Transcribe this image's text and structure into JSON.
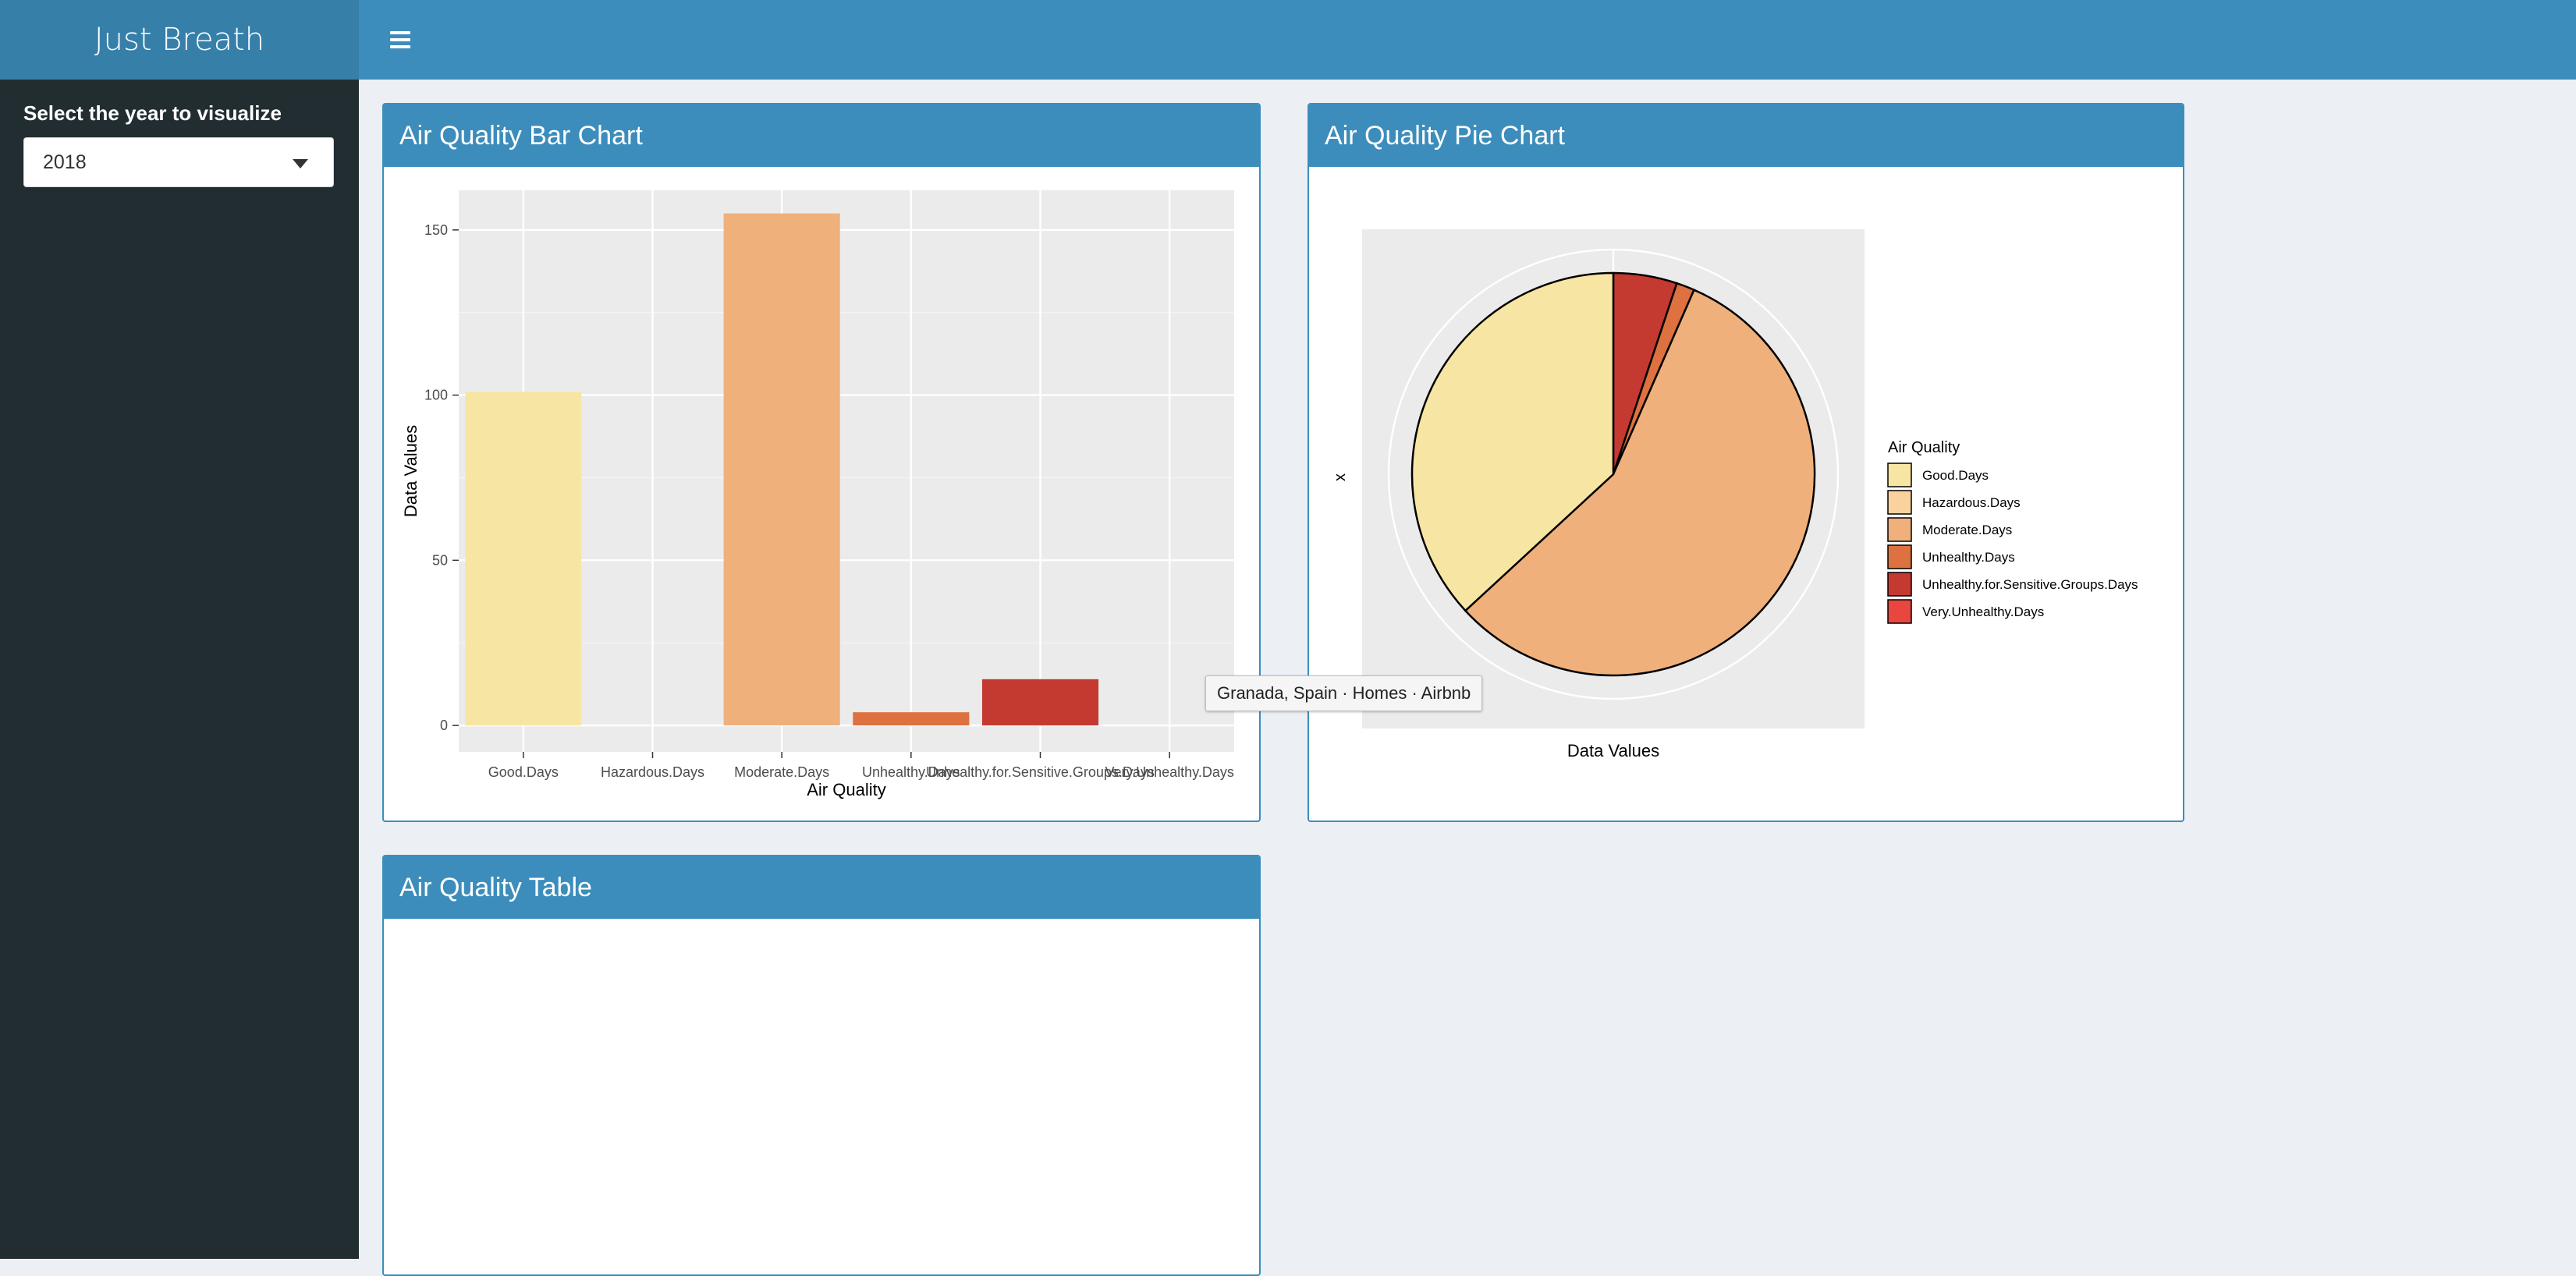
{
  "app": {
    "title": "Just Breath"
  },
  "sidebar": {
    "year_label": "Select the year to visualize",
    "year_value": "2018"
  },
  "boxes": {
    "bar_title": "Air Quality Bar Chart",
    "pie_title": "Air Quality Pie Chart",
    "table_title": "Air Quality Table"
  },
  "tooltip": "Granada, Spain · Homes · Airbnb",
  "colors": {
    "header": "#3c8dbc",
    "logo": "#367fa9",
    "sidebar": "#222d32",
    "series": [
      "#f7e6a3",
      "#f9d29e",
      "#efb07b",
      "#de7140",
      "#c43a30",
      "#e8463f"
    ]
  },
  "chart_data": [
    {
      "type": "bar",
      "categories": [
        "Good.Days",
        "Hazardous.Days",
        "Moderate.Days",
        "Unhealthy.Days",
        "Unhealthy.for.Sensitive.Groups.Days",
        "Very.Unhealthy.Days"
      ],
      "values": [
        101,
        0,
        155,
        4,
        14,
        0
      ],
      "xlabel": "Air Quality",
      "ylabel": "Data Values",
      "yticks": [
        0,
        50,
        100,
        150
      ],
      "ylim": [
        -8,
        162
      ],
      "grid": true
    },
    {
      "type": "pie",
      "categories": [
        "Good.Days",
        "Hazardous.Days",
        "Moderate.Days",
        "Unhealthy.Days",
        "Unhealthy.for.Sensitive.Groups.Days",
        "Very.Unhealthy.Days"
      ],
      "values": [
        101,
        0,
        155,
        4,
        14,
        0
      ],
      "legend_title": "Air Quality",
      "xlabel": "Data Values",
      "ylabel": "x",
      "legend_position": "right"
    }
  ]
}
